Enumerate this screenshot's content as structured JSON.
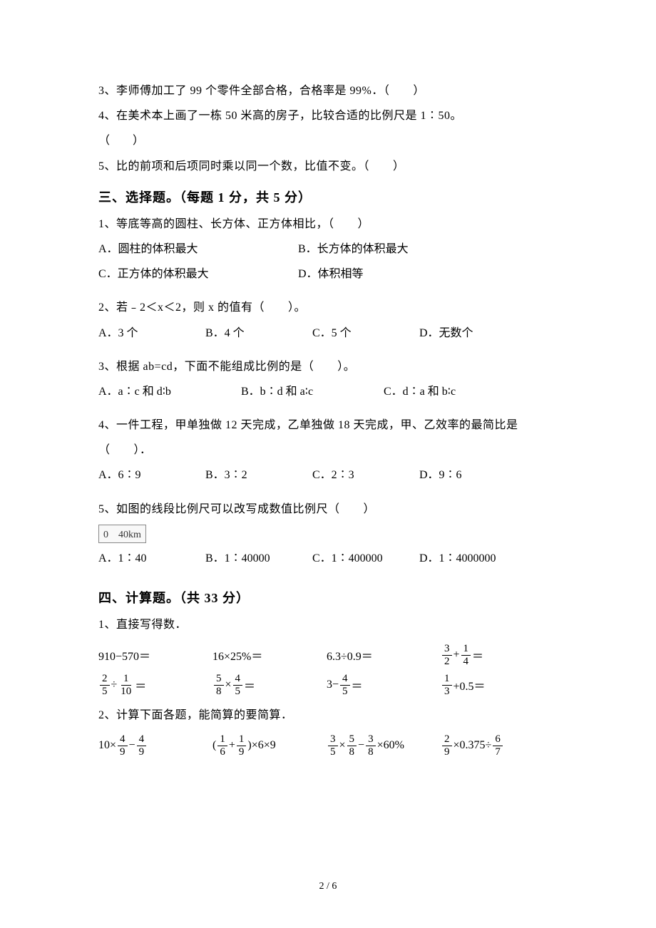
{
  "judgment": {
    "q3": "3、李师傅加工了 99 个零件全部合格，合格率是 99%．（　　）",
    "q4_line1": "4、在美术本上画了一栋 50 米高的房子，比较合适的比例尺是 1∶50。",
    "q4_line2": "（　　）",
    "q5": "5、比的前项和后项同时乘以同一个数，比值不变。（　　）"
  },
  "section3": {
    "header": "三、选择题。（每题 1 分，共 5 分）",
    "q1": {
      "text": "1、等底等高的圆柱、长方体、正方体相比，（　　）",
      "optA": "A．圆柱的体积最大",
      "optB": "B．长方体的体积最大",
      "optC": "C．正方体的体积最大",
      "optD": "D．体积相等"
    },
    "q2": {
      "text": "2、若﹣2＜x＜2，则 x 的值有（　　）。",
      "optA": "A．3 个",
      "optB": "B．4 个",
      "optC": "C．5 个",
      "optD": "D．无数个"
    },
    "q3": {
      "text": "3、根据 ab=cd，下面不能组成比例的是（　　）。",
      "optA": "A．a∶c 和 d∶b",
      "optB": "B．b∶d 和 a∶c",
      "optC": "C．d∶a 和 b∶c"
    },
    "q4": {
      "text": "4、一件工程，甲单独做 12 天完成，乙单独做 18 天完成，甲、乙效率的最简比是（　　）．",
      "optA": "A．6∶9",
      "optB": "B．3∶2",
      "optC": "C．2∶3",
      "optD": "D．9∶6"
    },
    "q5": {
      "text": "5、如图的线段比例尺可以改写成数值比例尺（　　）",
      "scale_label": "0　40km",
      "optA": "A．1∶40",
      "optB": "B．1∶40000",
      "optC": "C．1∶400000",
      "optD": "D．1∶4000000"
    }
  },
  "section4": {
    "header": "四、计算题。（共 33 分）",
    "q1": {
      "text": "1、直接写得数．",
      "r1c1": "910−570＝",
      "r1c2": "16×25%＝",
      "r1c3": "6.3÷0.9＝",
      "r1c4_before": "",
      "r1c4_f1_num": "3",
      "r1c4_f1_den": "2",
      "r1c4_mid": "+",
      "r1c4_f2_num": "1",
      "r1c4_f2_den": "4",
      "r1c4_after": "＝",
      "r2c1_f1_num": "2",
      "r2c1_f1_den": "5",
      "r2c1_mid": "÷",
      "r2c1_f2_num": "1",
      "r2c1_f2_den": "10",
      "r2c1_after": "＝",
      "r2c2_f1_num": "5",
      "r2c2_f1_den": "8",
      "r2c2_mid": "×",
      "r2c2_f2_num": "4",
      "r2c2_f2_den": "5",
      "r2c2_after": "＝",
      "r2c3_before": "3−",
      "r2c3_f1_num": "4",
      "r2c3_f1_den": "5",
      "r2c3_after": "＝",
      "r2c4_f1_num": "1",
      "r2c4_f1_den": "3",
      "r2c4_mid": "+0.5＝"
    },
    "q2": {
      "text": "2、计算下面各题，能简算的要简算．",
      "c1_before": "10×",
      "c1_f1_num": "4",
      "c1_f1_den": "9",
      "c1_mid": "−",
      "c1_f2_num": "4",
      "c1_f2_den": "9",
      "c2_before": "(",
      "c2_f1_num": "1",
      "c2_f1_den": "6",
      "c2_mid": "+",
      "c2_f2_num": "1",
      "c2_f2_den": "9",
      "c2_after": ")×6×9",
      "c3_f1_num": "3",
      "c3_f1_den": "5",
      "c3_m1": "×",
      "c3_f2_num": "5",
      "c3_f2_den": "8",
      "c3_m2": "−",
      "c3_f3_num": "3",
      "c3_f3_den": "8",
      "c3_after": "×60%",
      "c4_f1_num": "2",
      "c4_f1_den": "9",
      "c4_m1": "×0.375÷",
      "c4_f2_num": "6",
      "c4_f2_den": "7"
    }
  },
  "footer": "2 / 6",
  "colors": {
    "text": "#000000",
    "background": "#ffffff"
  },
  "typography": {
    "body_fontsize": 16,
    "header_fontsize": 18,
    "font_family": "SimSun"
  }
}
